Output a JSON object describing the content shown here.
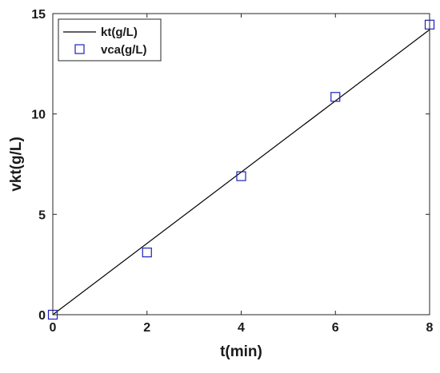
{
  "chart_data": {
    "type": "line",
    "title": "",
    "xlabel": "t(min)",
    "ylabel": "vkt(g/L)",
    "xlim": [
      0,
      8
    ],
    "ylim": [
      0,
      15
    ],
    "xticks": [
      0,
      2,
      4,
      6,
      8
    ],
    "yticks": [
      0,
      5,
      10,
      15
    ],
    "grid": false,
    "legend_position": "top-left",
    "series": [
      {
        "name": "kt(g/L)",
        "kind": "line",
        "color": "#000000",
        "x": [
          0,
          8
        ],
        "y": [
          0,
          14.2
        ]
      },
      {
        "name": "vca(g/L)",
        "kind": "scatter",
        "marker": "square",
        "color": "#1f1fbf",
        "x": [
          0,
          2,
          4,
          6,
          8
        ],
        "y": [
          0,
          3.1,
          6.9,
          10.85,
          14.45
        ]
      }
    ]
  }
}
